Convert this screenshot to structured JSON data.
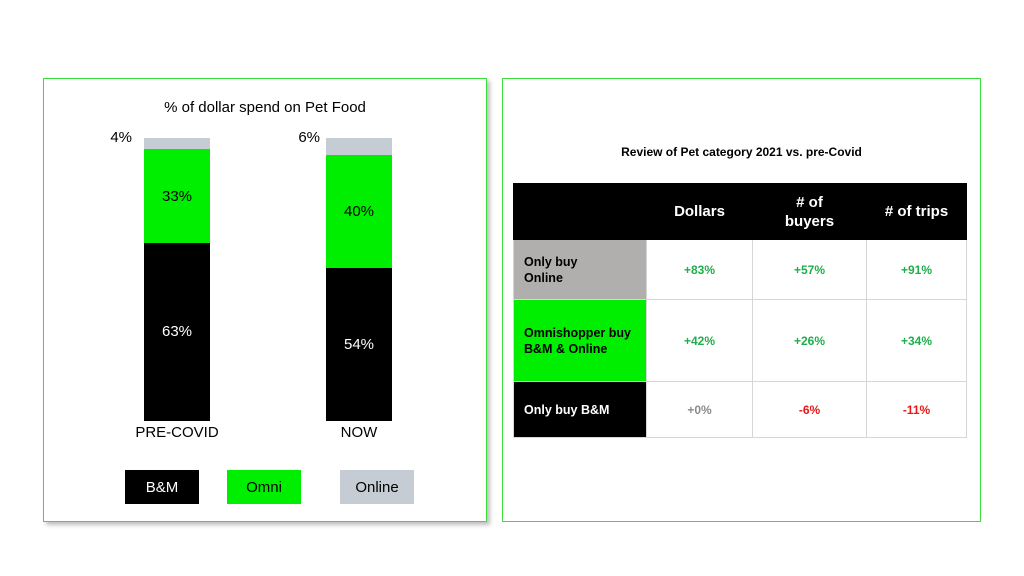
{
  "chart_data": [
    {
      "type": "bar",
      "stacked": true,
      "title": "% of dollar spend on Pet Food",
      "categories": [
        "PRE-COVID",
        "NOW"
      ],
      "series": [
        {
          "name": "B&M",
          "values": [
            63,
            54
          ],
          "labels": [
            "63%",
            "54%"
          ],
          "color": "#000000"
        },
        {
          "name": "Omni",
          "values": [
            33,
            40
          ],
          "labels": [
            "33%",
            "40%"
          ],
          "color": "#00ee00"
        },
        {
          "name": "Online",
          "values": [
            4,
            6
          ],
          "labels": [
            "4%",
            "6%"
          ],
          "color": "#c5ccd3"
        }
      ],
      "legend_position": "bottom",
      "grid": false
    },
    {
      "type": "table",
      "title": "Review of Pet category 2021 vs. pre-Covid",
      "columns": [
        "",
        "Dollars",
        "# of buyers",
        "# of trips"
      ],
      "rows": [
        {
          "label": "Only buy Online",
          "color": "#b1aeae",
          "text_color": "#000000",
          "values": [
            "+83%",
            "+57%",
            "+91%"
          ],
          "tones": [
            "pos",
            "pos",
            "pos"
          ]
        },
        {
          "label": "Omnishopper buy B&M & Online",
          "color": "#00ee00",
          "text_color": "#000000",
          "values": [
            "+42%",
            "+26%",
            "+34%"
          ],
          "tones": [
            "pos",
            "pos",
            "pos"
          ]
        },
        {
          "label": "Only buy B&M",
          "color": "#000000",
          "text_color": "#ffffff",
          "values": [
            "+0%",
            "-6%",
            "-11%"
          ],
          "tones": [
            "zero",
            "neg",
            "neg"
          ]
        }
      ]
    }
  ]
}
